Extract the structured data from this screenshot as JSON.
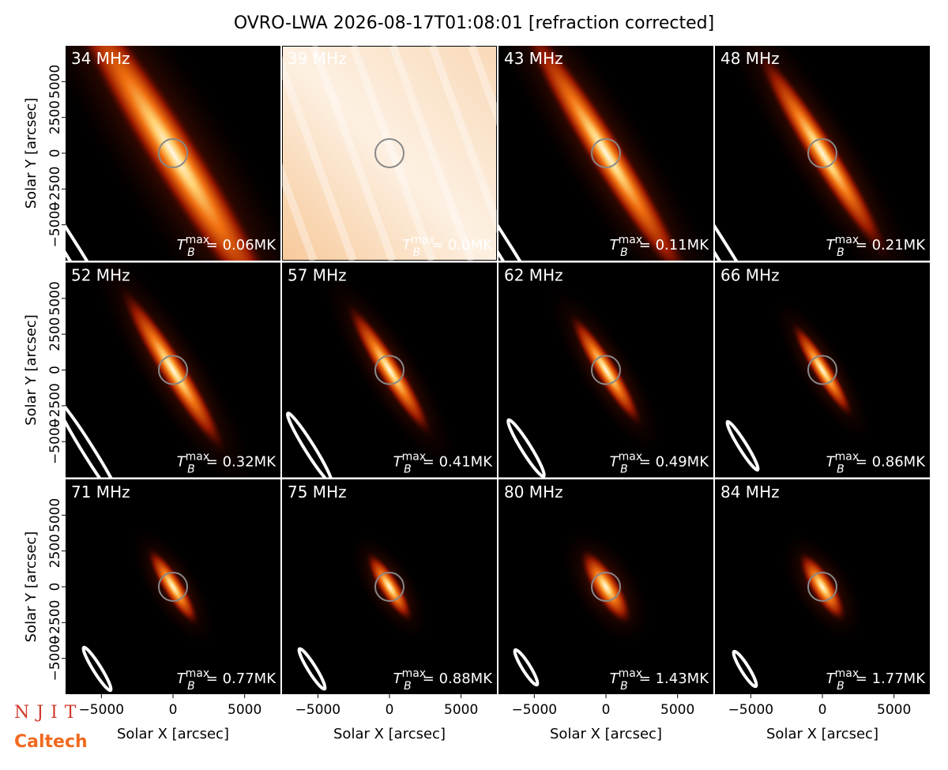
{
  "title": "OVRO-LWA 2026-08-17T01:08:01 [refraction corrected]",
  "logos": [
    "NJIT",
    "Caltech"
  ],
  "chart_data": [
    {
      "type": "image",
      "title": "34 MHz",
      "annotation": {
        "symbol": "T",
        "sub": "B",
        "sup": "max",
        "text": "= 0.06MK"
      },
      "xlim": [
        -7500,
        7500
      ],
      "ylim": [
        -7500,
        7500
      ],
      "ylabel": "Solar Y [arcsec]",
      "yticks": [
        {
          "value": -5000,
          "label": "−5000"
        },
        {
          "value": -2500,
          "label": "−2500"
        },
        0,
        2500,
        5000
      ]
    },
    {
      "type": "image",
      "title": "39 MHz",
      "annotation": {
        "symbol": "T",
        "sub": "B",
        "sup": "max",
        "text": "= 0.0MK"
      },
      "xlim": [
        -7500,
        7500
      ],
      "ylim": [
        -7500,
        7500
      ]
    },
    {
      "type": "image",
      "title": "43 MHz",
      "annotation": {
        "symbol": "T",
        "sub": "B",
        "sup": "max",
        "text": "= 0.11MK"
      },
      "xlim": [
        -7500,
        7500
      ],
      "ylim": [
        -7500,
        7500
      ]
    },
    {
      "type": "image",
      "title": "48 MHz",
      "annotation": {
        "symbol": "T",
        "sub": "B",
        "sup": "max",
        "text": "= 0.21MK"
      },
      "xlim": [
        -7500,
        7500
      ],
      "ylim": [
        -7500,
        7500
      ]
    },
    {
      "type": "image",
      "title": "52 MHz",
      "annotation": {
        "symbol": "T",
        "sub": "B",
        "sup": "max",
        "text": "= 0.32MK"
      },
      "xlim": [
        -7500,
        7500
      ],
      "ylim": [
        -7500,
        7500
      ],
      "ylabel": "Solar Y [arcsec]",
      "yticks": [
        {
          "value": -5000,
          "label": "−5000"
        },
        {
          "value": -2500,
          "label": "−2500"
        },
        0,
        2500,
        5000
      ]
    },
    {
      "type": "image",
      "title": "57 MHz",
      "annotation": {
        "symbol": "T",
        "sub": "B",
        "sup": "max",
        "text": "= 0.41MK"
      },
      "xlim": [
        -7500,
        7500
      ],
      "ylim": [
        -7500,
        7500
      ]
    },
    {
      "type": "image",
      "title": "62 MHz",
      "annotation": {
        "symbol": "T",
        "sub": "B",
        "sup": "max",
        "text": "= 0.49MK"
      },
      "xlim": [
        -7500,
        7500
      ],
      "ylim": [
        -7500,
        7500
      ]
    },
    {
      "type": "image",
      "title": "66 MHz",
      "annotation": {
        "symbol": "T",
        "sub": "B",
        "sup": "max",
        "text": "= 0.86MK"
      },
      "xlim": [
        -7500,
        7500
      ],
      "ylim": [
        -7500,
        7500
      ]
    },
    {
      "type": "image",
      "title": "71 MHz",
      "annotation": {
        "symbol": "T",
        "sub": "B",
        "sup": "max",
        "text": "= 0.77MK"
      },
      "xlim": [
        -7500,
        7500
      ],
      "ylim": [
        -7500,
        7500
      ],
      "ylabel": "Solar Y [arcsec]",
      "yticks": [
        {
          "value": -5000,
          "label": "−5000"
        },
        {
          "value": -2500,
          "label": "−2500"
        },
        0,
        2500,
        5000
      ],
      "xlabel": "Solar X [arcsec]",
      "xticks": [
        {
          "value": -5000,
          "label": "−5000"
        },
        0,
        5000
      ]
    },
    {
      "type": "image",
      "title": "75 MHz",
      "annotation": {
        "symbol": "T",
        "sub": "B",
        "sup": "max",
        "text": "= 0.88MK"
      },
      "xlim": [
        -7500,
        7500
      ],
      "ylim": [
        -7500,
        7500
      ],
      "xlabel": "Solar X [arcsec]",
      "xticks": [
        {
          "value": -5000,
          "label": "−5000"
        },
        0,
        5000
      ]
    },
    {
      "type": "image",
      "title": "80 MHz",
      "annotation": {
        "symbol": "T",
        "sub": "B",
        "sup": "max",
        "text": "= 1.43MK"
      },
      "xlim": [
        -7500,
        7500
      ],
      "ylim": [
        -7500,
        7500
      ],
      "xlabel": "Solar X [arcsec]",
      "xticks": [
        {
          "value": -5000,
          "label": "−5000"
        },
        0,
        5000
      ]
    },
    {
      "type": "image",
      "title": "84 MHz",
      "annotation": {
        "symbol": "T",
        "sub": "B",
        "sup": "max",
        "text": "= 1.77MK"
      },
      "xlim": [
        -7500,
        7500
      ],
      "ylim": [
        -7500,
        7500
      ],
      "xlabel": "Solar X [arcsec]",
      "xticks": [
        {
          "value": -5000,
          "label": "−5000"
        },
        0,
        5000
      ]
    }
  ]
}
